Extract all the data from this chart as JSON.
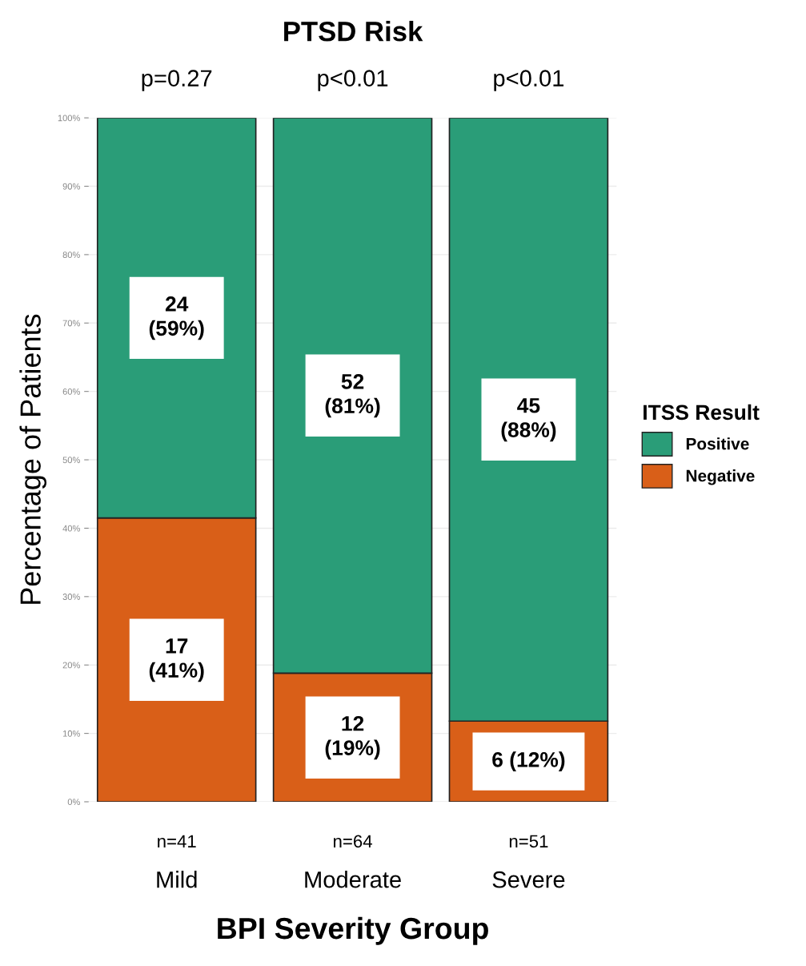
{
  "chart_data": {
    "type": "bar",
    "title": "PTSD Risk",
    "xlabel": "BPI Severity Group",
    "ylabel": "Percentage of Patients",
    "legend_title": "ITSS Result",
    "categories": [
      "Mild",
      "Moderate",
      "Severe"
    ],
    "stacked": true,
    "series": [
      {
        "name": "Negative",
        "color": "#d95f18",
        "values": [
          41.5,
          18.8,
          11.8
        ],
        "value_labels": [
          "17\n(41%)",
          "12\n(19%)",
          "6 (12%)"
        ]
      },
      {
        "name": "Positive",
        "color": "#2a9d78",
        "values": [
          58.5,
          81.2,
          88.2
        ],
        "value_labels": [
          "24\n(59%)",
          "52\n(81%)",
          "45\n(88%)"
        ]
      }
    ],
    "ylim": [
      0,
      100
    ],
    "yticks": [
      {
        "value": 0,
        "label": "0%"
      },
      {
        "value": 10,
        "label": "10%"
      },
      {
        "value": 20,
        "label": "20%"
      },
      {
        "value": 30,
        "label": "30%"
      },
      {
        "value": 40,
        "label": "40%"
      },
      {
        "value": 50,
        "label": "50%"
      },
      {
        "value": 60,
        "label": "60%"
      },
      {
        "value": 70,
        "label": "70%"
      },
      {
        "value": 80,
        "label": "80%"
      },
      {
        "value": 90,
        "label": "90%"
      },
      {
        "value": 100,
        "label": "100%"
      }
    ],
    "annotations": [
      "p=0.27",
      "p<0.01",
      "p<0.01",
      "n=41",
      "n=64",
      "n=51"
    ],
    "grid": "y",
    "legend": "right"
  }
}
